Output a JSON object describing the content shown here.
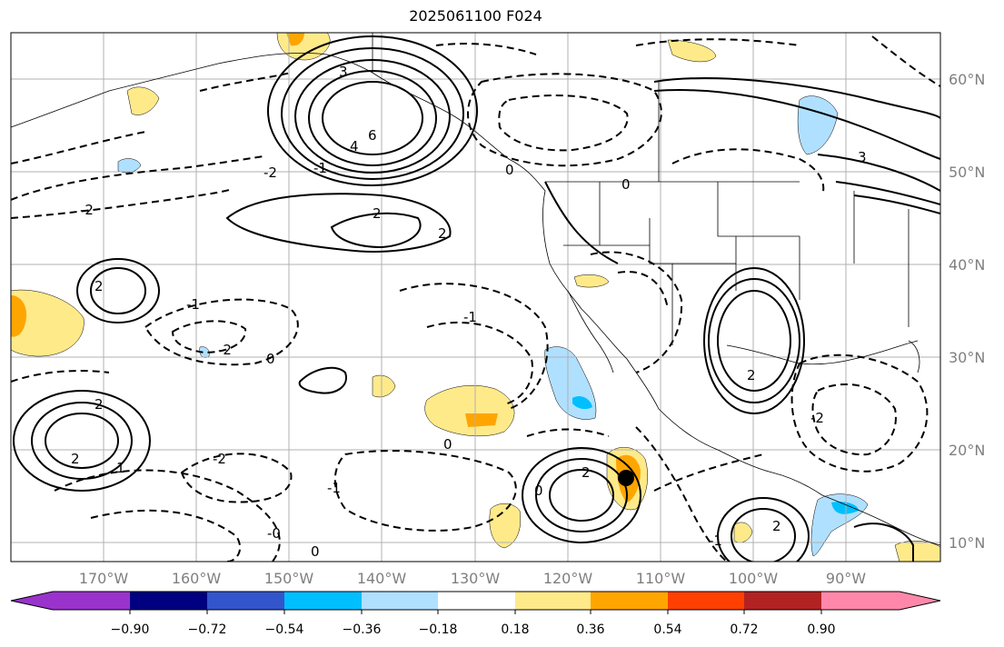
{
  "title": "2025061100 F024",
  "lat_labels": [
    "60°N",
    "50°N",
    "40°N",
    "30°N",
    "20°N",
    "10°N"
  ],
  "lon_labels": [
    "170°W",
    "160°W",
    "150°W",
    "140°W",
    "130°W",
    "120°W",
    "110°W",
    "100°W",
    "90°W"
  ],
  "colorbar": {
    "tick_labels": [
      "−0.90",
      "−0.72",
      "−0.54",
      "−0.36",
      "−0.18",
      "0.18",
      "0.36",
      "0.54",
      "0.72",
      "0.90"
    ],
    "colors": [
      "#9933cc",
      "#000080",
      "#3355cc",
      "#00bfff",
      "#b0e0ff",
      "#ffffff",
      "#ffea8a",
      "#ffa500",
      "#ff4000",
      "#b22222",
      "#ff88aa"
    ]
  },
  "contour_labels": [
    {
      "text": "6"
    },
    {
      "text": "4"
    },
    {
      "text": "3"
    },
    {
      "text": "2"
    },
    {
      "text": "2"
    },
    {
      "text": "2"
    },
    {
      "text": "-2"
    },
    {
      "text": "-2"
    },
    {
      "text": "-1"
    },
    {
      "text": "-1"
    },
    {
      "text": "0"
    },
    {
      "text": "0"
    },
    {
      "text": "2"
    },
    {
      "text": "2"
    },
    {
      "text": "1"
    },
    {
      "text": "-2"
    },
    {
      "text": "-1"
    },
    {
      "text": "0"
    },
    {
      "text": "2"
    },
    {
      "text": "0"
    },
    {
      "text": "-2"
    },
    {
      "text": "-1"
    },
    {
      "text": "0"
    },
    {
      "text": "3"
    },
    {
      "text": "2"
    },
    {
      "text": "-2"
    },
    {
      "text": "-1"
    },
    {
      "text": "-0"
    },
    {
      "text": "0"
    },
    {
      "text": "2"
    }
  ],
  "storm_marker": {
    "lat": 17,
    "lon": -114
  }
}
